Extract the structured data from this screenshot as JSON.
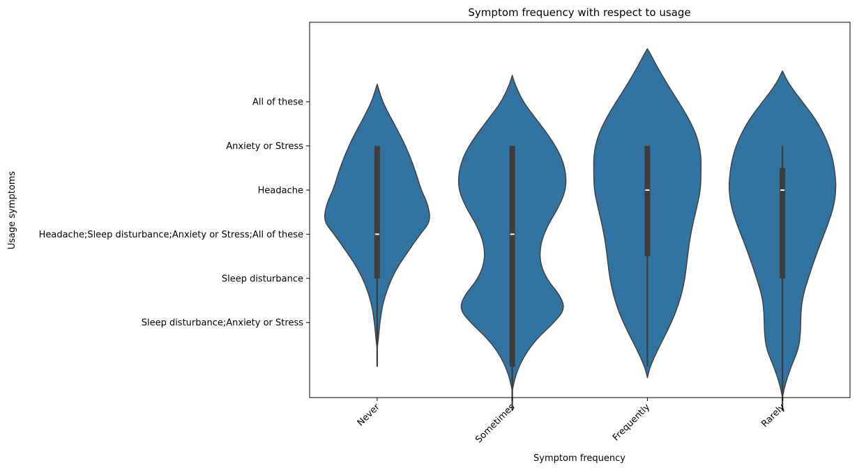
{
  "chart_data": {
    "type": "violin",
    "title": "Symptom frequency with respect to usage",
    "xlabel": "Symptom frequency",
    "ylabel": "Usage symptoms",
    "categories": [
      "Never",
      "Sometimes",
      "Frequently",
      "Rarely"
    ],
    "y_categories": [
      "All of these",
      "Anxiety or Stress",
      "Headache",
      "Headache;Sleep disturbance;Anxiety or Stress;All of these",
      "Sleep disturbance",
      "Sleep disturbance;Anxiety or Stress"
    ],
    "ylim": [
      -0.7,
      7.8
    ],
    "grid": false,
    "colors": {
      "violin_fill": "#3274a1",
      "violin_edge": "#3d3d3d",
      "box": "#3d3d3d",
      "median": "#ffffff"
    },
    "violins": [
      {
        "category": "Never",
        "width_profile": [
          [
            0.4,
            0.0
          ],
          [
            0.6,
            0.02
          ],
          [
            1.0,
            0.05
          ],
          [
            1.4,
            0.1
          ],
          [
            1.8,
            0.2
          ],
          [
            2.2,
            0.35
          ],
          [
            2.6,
            0.57
          ],
          [
            3.0,
            0.8
          ],
          [
            3.3,
            1.0
          ],
          [
            3.7,
            0.94
          ],
          [
            4.0,
            0.82
          ],
          [
            4.4,
            0.72
          ],
          [
            4.8,
            0.6
          ],
          [
            5.2,
            0.45
          ],
          [
            5.6,
            0.27
          ],
          [
            6.0,
            0.1
          ],
          [
            6.4,
            0.0
          ]
        ],
        "box": {
          "q1": 2,
          "median": 3,
          "q3": 5,
          "whisker_low": 0,
          "whisker_high": 5
        }
      },
      {
        "category": "Sometimes",
        "width_profile": [
          [
            -0.55,
            0.0
          ],
          [
            -0.2,
            0.06
          ],
          [
            0.2,
            0.2
          ],
          [
            0.6,
            0.43
          ],
          [
            1.0,
            0.78
          ],
          [
            1.3,
            0.98
          ],
          [
            1.6,
            0.9
          ],
          [
            2.0,
            0.63
          ],
          [
            2.4,
            0.51
          ],
          [
            2.8,
            0.53
          ],
          [
            3.2,
            0.66
          ],
          [
            3.6,
            0.86
          ],
          [
            4.0,
            1.0
          ],
          [
            4.4,
            1.0
          ],
          [
            4.8,
            0.9
          ],
          [
            5.2,
            0.7
          ],
          [
            5.6,
            0.45
          ],
          [
            6.0,
            0.2
          ],
          [
            6.4,
            0.05
          ],
          [
            6.6,
            0.0
          ]
        ],
        "box": {
          "q1": 0,
          "median": 3,
          "q3": 5,
          "whisker_low": -1,
          "whisker_high": 5
        }
      },
      {
        "category": "Frequently",
        "width_profile": [
          [
            -0.25,
            0.0
          ],
          [
            0.0,
            0.05
          ],
          [
            0.4,
            0.2
          ],
          [
            0.8,
            0.37
          ],
          [
            1.2,
            0.52
          ],
          [
            1.6,
            0.63
          ],
          [
            2.0,
            0.7
          ],
          [
            2.4,
            0.74
          ],
          [
            2.8,
            0.78
          ],
          [
            3.2,
            0.84
          ],
          [
            3.6,
            0.92
          ],
          [
            4.0,
            0.99
          ],
          [
            4.4,
            1.0
          ],
          [
            4.8,
            1.0
          ],
          [
            5.2,
            0.93
          ],
          [
            5.6,
            0.78
          ],
          [
            6.0,
            0.58
          ],
          [
            6.4,
            0.37
          ],
          [
            6.8,
            0.18
          ],
          [
            7.1,
            0.05
          ],
          [
            7.2,
            0.0
          ]
        ],
        "box": {
          "q1": 2.5,
          "median": 4,
          "q3": 5,
          "whisker_low": 0,
          "whisker_high": 5
        }
      },
      {
        "category": "Rarely",
        "width_profile": [
          [
            -0.7,
            0.0
          ],
          [
            -0.4,
            0.05
          ],
          [
            0.0,
            0.16
          ],
          [
            0.4,
            0.3
          ],
          [
            0.8,
            0.34
          ],
          [
            1.2,
            0.34
          ],
          [
            1.6,
            0.38
          ],
          [
            2.0,
            0.48
          ],
          [
            2.4,
            0.59
          ],
          [
            2.8,
            0.71
          ],
          [
            3.2,
            0.84
          ],
          [
            3.6,
            0.95
          ],
          [
            4.0,
            1.0
          ],
          [
            4.4,
            0.98
          ],
          [
            4.8,
            0.92
          ],
          [
            5.2,
            0.8
          ],
          [
            5.6,
            0.62
          ],
          [
            6.0,
            0.37
          ],
          [
            6.4,
            0.12
          ],
          [
            6.7,
            0.0
          ]
        ],
        "box": {
          "q1": 2,
          "median": 4,
          "q3": 4.5,
          "whisker_low": -1,
          "whisker_high": 5
        }
      }
    ]
  }
}
